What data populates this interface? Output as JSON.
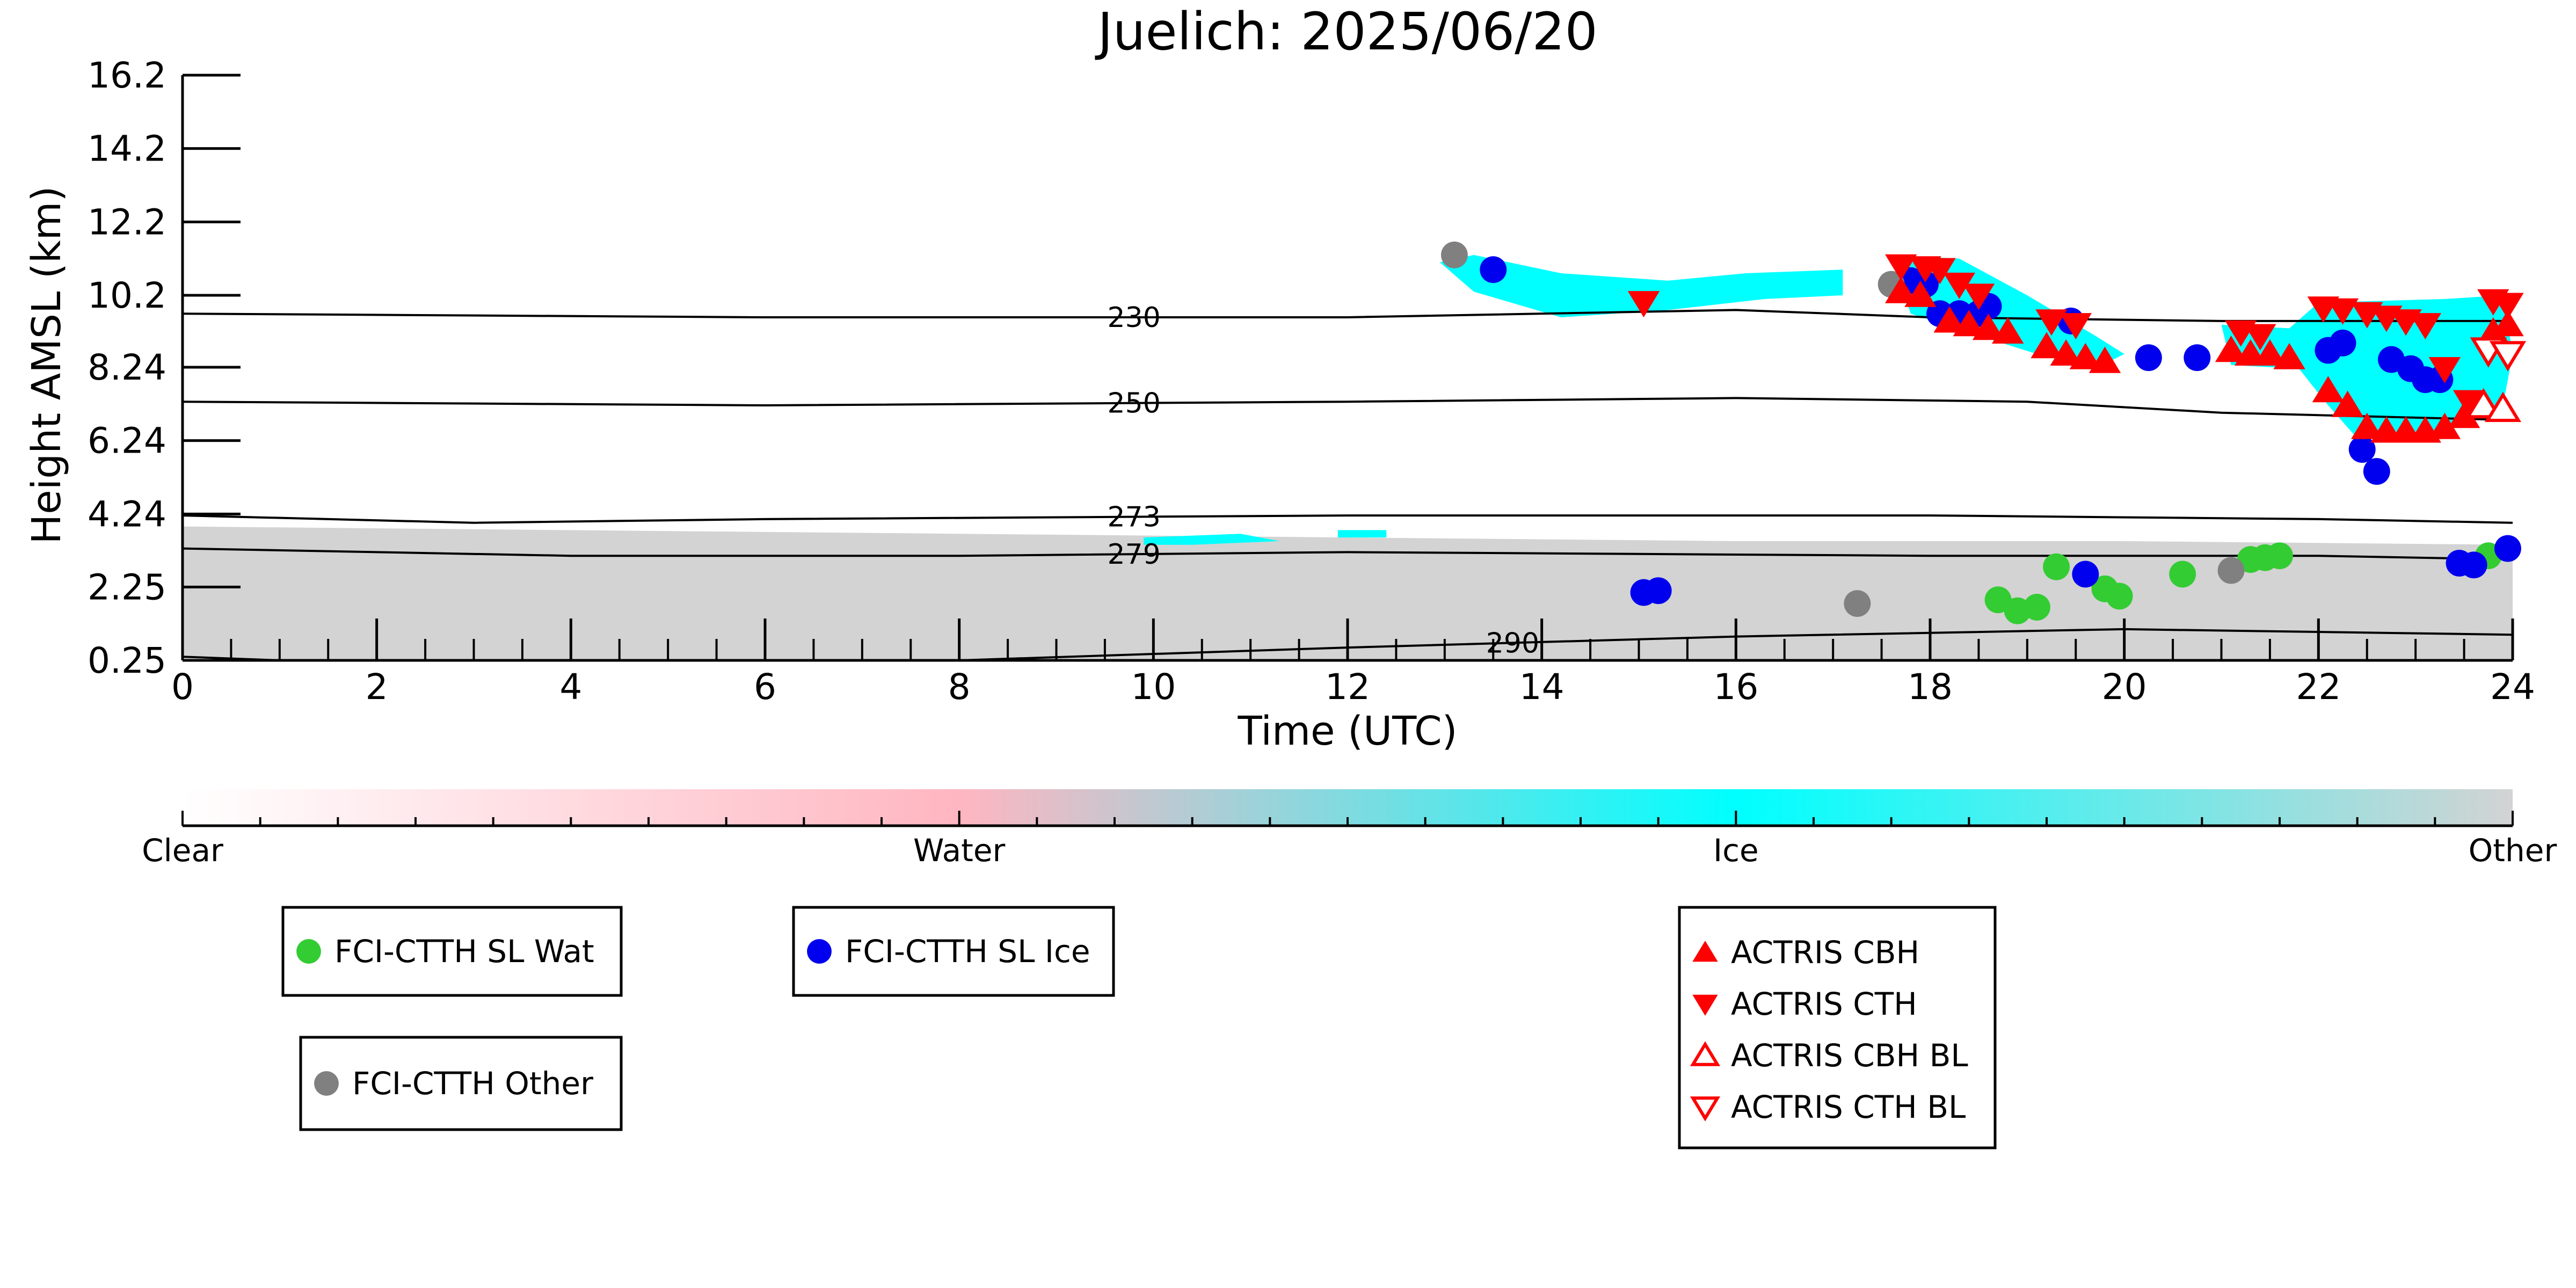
{
  "chart_data": {
    "type": "scatter",
    "title": "Juelich: 2025/06/20",
    "xlabel": "Time (UTC)",
    "ylabel": "Height AMSL (km)",
    "xlim": [
      0,
      24
    ],
    "ylim": [
      0.25,
      16.2
    ],
    "xticks": [
      0,
      2,
      4,
      6,
      8,
      10,
      12,
      14,
      16,
      18,
      20,
      22,
      24
    ],
    "xtick_labels": [
      "0",
      "2",
      "4",
      "6",
      "8",
      "10",
      "12",
      "14",
      "16",
      "18",
      "20",
      "22",
      "24"
    ],
    "yticks": [
      0.25,
      2.25,
      4.24,
      6.24,
      8.24,
      10.2,
      12.2,
      14.2,
      16.2
    ],
    "ytick_labels": [
      "0.25",
      "2.25",
      "4.24",
      "6.24",
      "8.24",
      "10.2",
      "12.2",
      "14.2",
      "16.2"
    ],
    "grid": false,
    "colors": {
      "clear": "#ffffff",
      "water": "#ffb6c1",
      "ice": "#00ffff",
      "other": "#d3d3d3",
      "sl_water": "#33cc33",
      "sl_ice": "#0000ee",
      "other_marker": "#808080",
      "actris": "#ff0000"
    },
    "colorbar": {
      "labels": [
        "Clear",
        "Water",
        "Ice",
        "Other"
      ]
    },
    "contours": [
      {
        "label": "230",
        "label_x": 9.8,
        "points": [
          [
            0,
            9.7
          ],
          [
            6,
            9.6
          ],
          [
            12,
            9.6
          ],
          [
            16,
            9.8
          ],
          [
            18,
            9.6
          ],
          [
            21,
            9.5
          ],
          [
            24,
            9.5
          ]
        ]
      },
      {
        "label": "250",
        "label_x": 9.8,
        "points": [
          [
            0,
            7.3
          ],
          [
            6,
            7.2
          ],
          [
            12,
            7.3
          ],
          [
            16,
            7.4
          ],
          [
            19,
            7.3
          ],
          [
            21,
            7.0
          ],
          [
            24,
            6.8
          ]
        ]
      },
      {
        "label": "273",
        "label_x": 9.8,
        "points": [
          [
            0,
            4.2
          ],
          [
            3,
            4.0
          ],
          [
            6,
            4.1
          ],
          [
            12,
            4.2
          ],
          [
            18,
            4.2
          ],
          [
            22,
            4.1
          ],
          [
            24,
            4.0
          ]
        ]
      },
      {
        "label": "279",
        "label_x": 9.8,
        "points": [
          [
            0,
            3.3
          ],
          [
            4,
            3.1
          ],
          [
            8,
            3.1
          ],
          [
            12,
            3.2
          ],
          [
            18,
            3.1
          ],
          [
            22,
            3.1
          ],
          [
            24,
            3.0
          ]
        ]
      },
      {
        "label": "290",
        "label_x": 13.7,
        "points": [
          [
            0,
            0.35
          ],
          [
            1,
            0.25
          ],
          [
            8,
            0.25
          ],
          [
            12,
            0.6
          ],
          [
            16,
            0.9
          ],
          [
            20,
            1.1
          ],
          [
            24,
            0.95
          ]
        ]
      }
    ],
    "legend_groups": [
      {
        "entries": [
          {
            "marker": "circle",
            "color_key": "sl_water",
            "label": "FCI-CTTH SL Wat"
          }
        ]
      },
      {
        "entries": [
          {
            "marker": "circle",
            "color_key": "sl_ice",
            "label": "FCI-CTTH SL Ice"
          }
        ]
      },
      {
        "entries": [
          {
            "marker": "circle",
            "color_key": "other_marker",
            "label": "FCI-CTTH Other"
          }
        ]
      },
      {
        "entries": [
          {
            "marker": "triangle-up",
            "color_key": "actris",
            "label": "ACTRIS CBH"
          },
          {
            "marker": "triangle-down",
            "color_key": "actris",
            "label": "ACTRIS CTH"
          },
          {
            "marker": "triangle-up-open",
            "color_key": "actris",
            "label": "ACTRIS CBH BL"
          },
          {
            "marker": "triangle-down-open",
            "color_key": "actris",
            "label": "ACTRIS CTH BL"
          }
        ]
      }
    ],
    "series": [
      {
        "name": "FCI-CTTH SL Wat",
        "marker": "circle",
        "color_key": "sl_water",
        "points": [
          [
            18.7,
            1.9
          ],
          [
            18.9,
            1.6
          ],
          [
            19.1,
            1.7
          ],
          [
            19.3,
            2.8
          ],
          [
            19.8,
            2.2
          ],
          [
            19.95,
            2.0
          ],
          [
            20.6,
            2.6
          ],
          [
            21.3,
            3.0
          ],
          [
            21.45,
            3.05
          ],
          [
            21.6,
            3.1
          ],
          [
            23.75,
            3.1
          ]
        ]
      },
      {
        "name": "FCI-CTTH SL Ice",
        "marker": "circle",
        "color_key": "sl_ice",
        "points": [
          [
            13.5,
            10.9
          ],
          [
            15.05,
            2.1
          ],
          [
            15.2,
            2.15
          ],
          [
            17.8,
            10.6
          ],
          [
            17.95,
            10.5
          ],
          [
            18.1,
            9.7
          ],
          [
            18.3,
            9.7
          ],
          [
            18.5,
            9.7
          ],
          [
            18.6,
            9.9
          ],
          [
            19.45,
            9.5
          ],
          [
            19.6,
            2.6
          ],
          [
            20.25,
            8.5
          ],
          [
            20.75,
            8.5
          ],
          [
            22.1,
            8.7
          ],
          [
            22.25,
            8.9
          ],
          [
            22.45,
            6.0
          ],
          [
            22.6,
            5.4
          ],
          [
            22.75,
            8.45
          ],
          [
            22.95,
            8.2
          ],
          [
            23.1,
            7.9
          ],
          [
            23.25,
            7.9
          ],
          [
            23.45,
            2.9
          ],
          [
            23.6,
            2.85
          ],
          [
            23.95,
            3.3
          ]
        ]
      },
      {
        "name": "FCI-CTTH Other",
        "marker": "circle",
        "color_key": "other_marker",
        "points": [
          [
            13.1,
            11.3
          ],
          [
            17.6,
            10.5
          ],
          [
            17.25,
            1.8
          ],
          [
            21.1,
            2.7
          ]
        ]
      },
      {
        "name": "ACTRIS CBH",
        "marker": "triangle-up",
        "color_key": "actris",
        "points": [
          [
            17.7,
            10.3
          ],
          [
            17.9,
            10.2
          ],
          [
            18.2,
            9.5
          ],
          [
            18.4,
            9.4
          ],
          [
            18.6,
            9.3
          ],
          [
            18.8,
            9.2
          ],
          [
            19.2,
            8.8
          ],
          [
            19.4,
            8.6
          ],
          [
            19.6,
            8.5
          ],
          [
            19.8,
            8.4
          ],
          [
            21.1,
            8.7
          ],
          [
            21.3,
            8.6
          ],
          [
            21.5,
            8.6
          ],
          [
            21.7,
            8.5
          ],
          [
            22.1,
            7.6
          ],
          [
            22.3,
            7.2
          ],
          [
            22.5,
            6.6
          ],
          [
            22.7,
            6.5
          ],
          [
            22.9,
            6.5
          ],
          [
            23.1,
            6.5
          ],
          [
            23.3,
            6.6
          ],
          [
            23.5,
            6.9
          ],
          [
            23.8,
            9.2
          ],
          [
            23.95,
            9.4
          ]
        ]
      },
      {
        "name": "ACTRIS CTH",
        "marker": "triangle-down",
        "color_key": "actris",
        "points": [
          [
            15.05,
            10.0
          ],
          [
            17.7,
            11.0
          ],
          [
            17.95,
            10.95
          ],
          [
            18.1,
            10.9
          ],
          [
            18.3,
            10.5
          ],
          [
            18.5,
            10.2
          ],
          [
            19.25,
            9.5
          ],
          [
            19.5,
            9.4
          ],
          [
            21.2,
            9.2
          ],
          [
            21.4,
            9.1
          ],
          [
            22.05,
            9.85
          ],
          [
            22.25,
            9.8
          ],
          [
            22.5,
            9.7
          ],
          [
            22.7,
            9.6
          ],
          [
            22.9,
            9.5
          ],
          [
            23.1,
            9.4
          ],
          [
            23.3,
            8.2
          ],
          [
            23.55,
            7.3
          ],
          [
            23.8,
            10.05
          ],
          [
            23.95,
            9.95
          ]
        ]
      },
      {
        "name": "ACTRIS CBH BL",
        "marker": "triangle-up-open",
        "color_key": "actris",
        "points": [
          [
            23.7,
            7.2
          ],
          [
            23.9,
            7.1
          ]
        ]
      },
      {
        "name": "ACTRIS CTH BL",
        "marker": "triangle-down-open",
        "color_key": "actris",
        "points": [
          [
            23.75,
            8.7
          ],
          [
            23.95,
            8.6
          ]
        ]
      }
    ],
    "ice_regions": [
      [
        [
          12.95,
          11.1
        ],
        [
          13.3,
          11.3
        ],
        [
          14.2,
          10.8
        ],
        [
          15.3,
          10.6
        ],
        [
          16.1,
          10.8
        ],
        [
          17.1,
          10.9
        ],
        [
          17.1,
          10.2
        ],
        [
          16.3,
          10.1
        ],
        [
          15.3,
          9.8
        ],
        [
          14.2,
          9.6
        ],
        [
          13.3,
          10.3
        ]
      ],
      [
        [
          17.6,
          11.3
        ],
        [
          18.3,
          11.2
        ],
        [
          19.0,
          10.2
        ],
        [
          19.7,
          9.1
        ],
        [
          20.0,
          8.6
        ],
        [
          19.7,
          8.2
        ],
        [
          19.1,
          8.6
        ],
        [
          18.5,
          9.1
        ],
        [
          17.8,
          9.7
        ]
      ],
      [
        [
          21.0,
          9.4
        ],
        [
          21.7,
          9.3
        ],
        [
          22.0,
          10.0
        ],
        [
          23.3,
          10.1
        ],
        [
          23.9,
          10.2
        ],
        [
          24.0,
          8.6
        ],
        [
          23.9,
          7.2
        ],
        [
          23.6,
          6.8
        ],
        [
          23.1,
          6.3
        ],
        [
          22.4,
          6.3
        ],
        [
          22.1,
          7.2
        ],
        [
          21.8,
          8.2
        ],
        [
          21.1,
          8.3
        ]
      ],
      [
        [
          9.9,
          3.6
        ],
        [
          10.9,
          3.7
        ],
        [
          11.3,
          3.5
        ],
        [
          10.4,
          3.4
        ],
        [
          9.9,
          3.4
        ]
      ],
      [
        [
          11.9,
          3.8
        ],
        [
          12.4,
          3.8
        ],
        [
          12.4,
          3.6
        ],
        [
          11.9,
          3.6
        ]
      ]
    ],
    "other_regions": [
      [
        [
          0,
          3.9
        ],
        [
          4,
          3.8
        ],
        [
          8,
          3.7
        ],
        [
          12,
          3.6
        ],
        [
          16,
          3.5
        ],
        [
          20,
          3.5
        ],
        [
          24,
          3.4
        ],
        [
          24,
          0.25
        ],
        [
          0,
          0.25
        ]
      ]
    ]
  }
}
